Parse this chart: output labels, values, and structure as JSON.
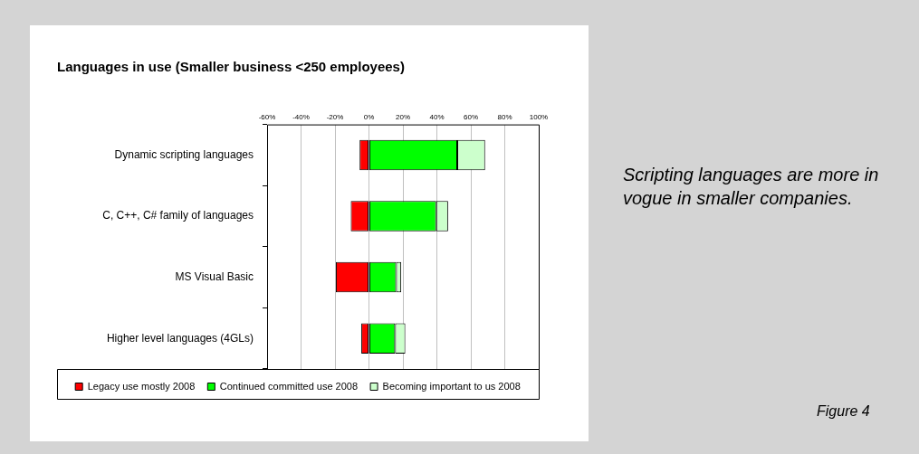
{
  "chart_data": {
    "type": "bar",
    "orientation": "horizontal",
    "stacked": true,
    "title": "Languages in use (Smaller business <250 employees)",
    "categories": [
      "Dynamic scripting languages",
      "C, C++, C# family of languages",
      "MS Visual Basic",
      "Higher level languages (4GLs)"
    ],
    "series": [
      {
        "name": "Legacy use mostly 2008",
        "color": "#ff0000",
        "values": [
          -5.5,
          -10.7,
          -19.5,
          -4.5
        ]
      },
      {
        "name": "Continued committed use 2008",
        "color": "#00ff00",
        "values": [
          52,
          39.6,
          16,
          15.4
        ]
      },
      {
        "name": "Becoming important to us 2008",
        "color": "#ccffcc",
        "values": [
          16.4,
          7,
          3,
          6
        ]
      }
    ],
    "xlim": [
      -60,
      100
    ],
    "xticks": [
      {
        "value": -60,
        "label": "-60%"
      },
      {
        "value": -40,
        "label": "-40%"
      },
      {
        "value": -20,
        "label": "-20%"
      },
      {
        "value": 0,
        "label": "0%"
      },
      {
        "value": 20,
        "label": "20%"
      },
      {
        "value": 40,
        "label": "40%"
      },
      {
        "value": 60,
        "label": "60%"
      },
      {
        "value": 80,
        "label": "80%"
      },
      {
        "value": 100,
        "label": "100%"
      }
    ],
    "grid": "x",
    "legend": "bottom",
    "annotations": [
      "Scripting languages are more in vogue in smaller companies.",
      "Figure 4"
    ]
  }
}
